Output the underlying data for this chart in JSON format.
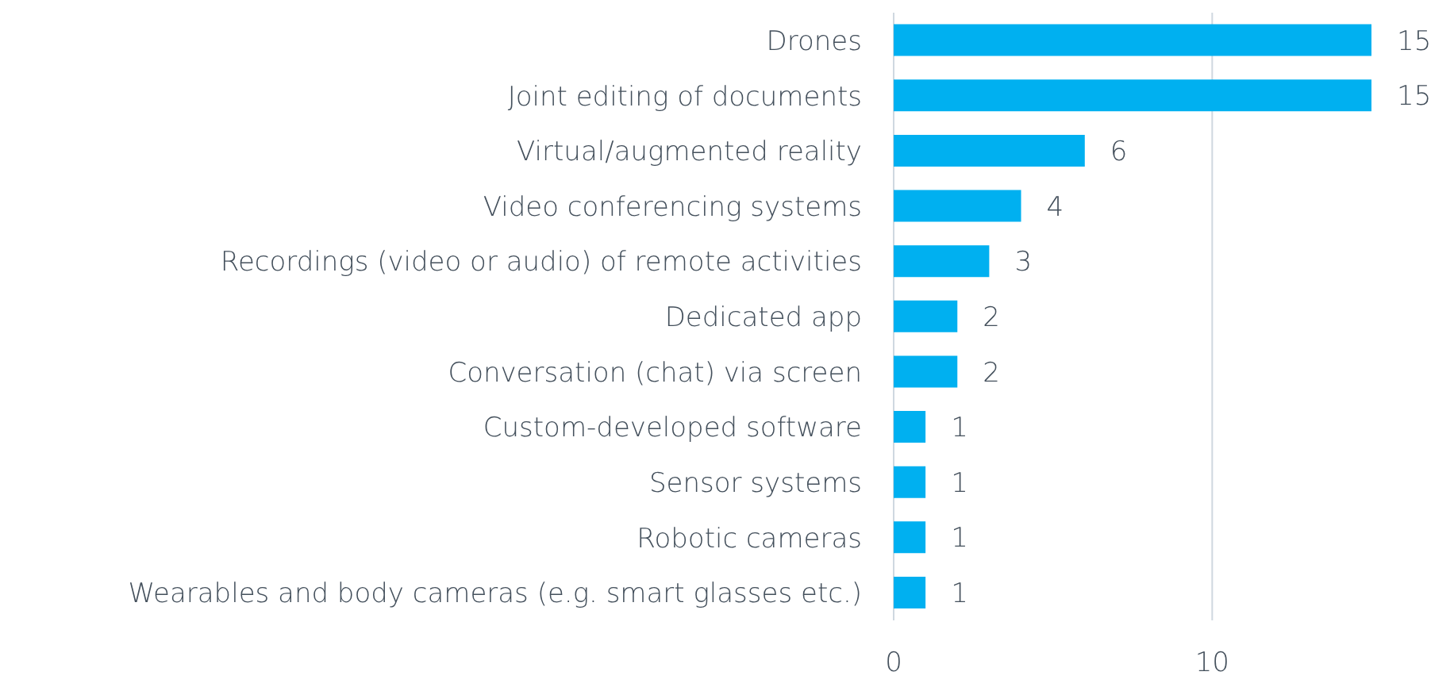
{
  "chart_data": {
    "type": "bar",
    "orientation": "horizontal",
    "categories": [
      "Drones",
      "Joint editing of documents",
      "Virtual/augmented reality",
      "Video conferencing systems",
      "Recordings (video or audio) of remote activities",
      "Dedicated app",
      "Conversation (chat) via screen",
      "Custom-developed software",
      "Sensor systems",
      "Robotic cameras",
      "Wearables and body cameras (e.g. smart glasses etc.)"
    ],
    "values": [
      15,
      15,
      6,
      4,
      3,
      2,
      2,
      1,
      1,
      1,
      1
    ],
    "color": "#00b0f0",
    "xlim": [
      0,
      15
    ],
    "xticks": [
      0,
      10
    ],
    "grid": "x",
    "data_labels": true
  }
}
